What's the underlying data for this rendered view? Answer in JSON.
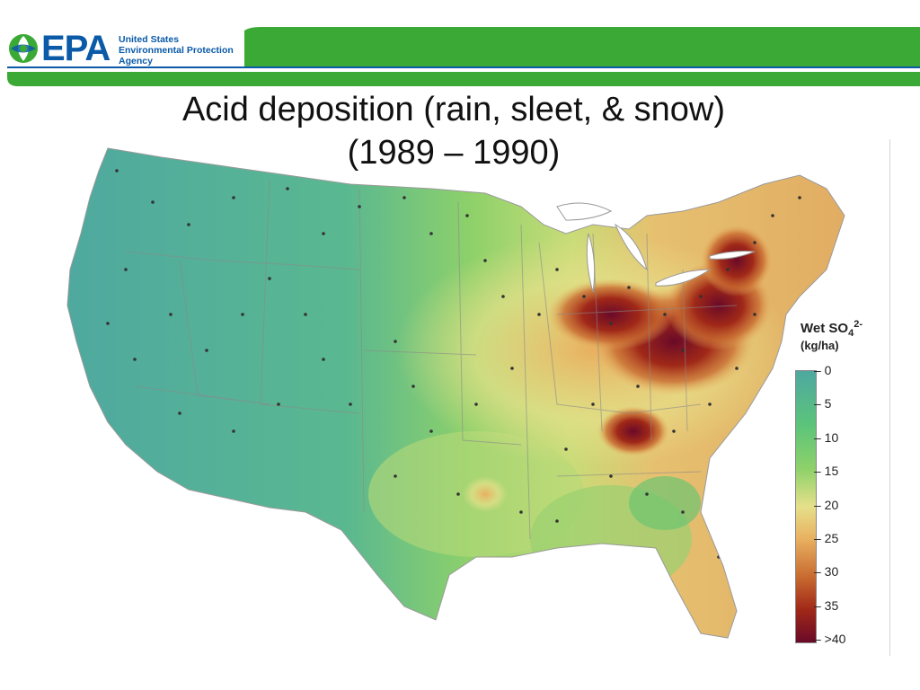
{
  "header": {
    "agency_mark": "EPA",
    "agency_lines": [
      "United States",
      "Environmental Protection",
      "Agency"
    ],
    "brand_green": "#3aa935",
    "brand_blue": "#0a5aa8"
  },
  "title": {
    "line1": "Acid deposition (rain, sleet, & snow)",
    "line2": "(1989 – 1990)"
  },
  "map": {
    "region": "contiguous United States",
    "variable": "wet sulfate deposition",
    "hotspot_regions": [
      "Ohio River Valley",
      "western Pennsylvania",
      "western New York",
      "Tennessee"
    ]
  },
  "legend": {
    "title_main": "Wet SO",
    "title_sub": "4",
    "title_sup": "2-",
    "unit": "(kg/ha)",
    "ticks": [
      "0",
      "5",
      "10",
      "15",
      "20",
      "25",
      "30",
      "35",
      ">40"
    ],
    "colors": [
      "#4ea8a0",
      "#5cc47a",
      "#8ed16a",
      "#e6e08a",
      "#e8b060",
      "#c86a30",
      "#a02818",
      "#6a0a28"
    ]
  }
}
